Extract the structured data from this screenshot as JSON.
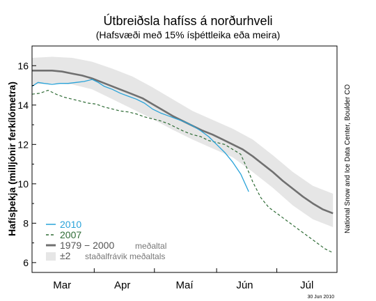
{
  "chart_data": {
    "type": "line",
    "title": "Útbreiðsla hafíss á norðurhveli",
    "subtitle": "(Hafsvæði með 15% ísþéttleika eða meira)",
    "ylabel": "Hafísþekja  (milljónir ferkílómetra)",
    "xlabel": "",
    "ylim": [
      5.5,
      17
    ],
    "yticks": [
      6,
      8,
      10,
      12,
      14,
      16
    ],
    "xlim": [
      0,
      152
    ],
    "month_labels": [
      {
        "label": "Mar",
        "day": 15
      },
      {
        "label": "Apr",
        "day": 45
      },
      {
        "label": "Maí",
        "day": 76
      },
      {
        "label": "Jún",
        "day": 106
      },
      {
        "label": "Júl",
        "day": 137
      }
    ],
    "month_starts": [
      0,
      31,
      61,
      92,
      122
    ],
    "series": [
      {
        "name": "2010",
        "style": "solid",
        "color": "#29a3d9",
        "x": [
          0,
          3,
          6,
          10,
          14,
          18,
          22,
          26,
          30,
          33,
          36,
          40,
          44,
          48,
          52,
          56,
          60,
          64,
          68,
          72,
          76,
          80,
          84,
          88,
          92,
          96,
          100,
          104,
          108
        ],
        "y": [
          14.95,
          15.15,
          15.1,
          15.05,
          15.1,
          15.1,
          15.15,
          15.2,
          15.3,
          15.15,
          14.95,
          14.8,
          14.6,
          14.45,
          14.3,
          14.1,
          13.8,
          13.6,
          13.45,
          13.3,
          13.15,
          12.95,
          12.7,
          12.4,
          12.0,
          11.6,
          11.1,
          10.5,
          9.6
        ]
      },
      {
        "name": "2007",
        "style": "dashed",
        "color": "#2e6b35",
        "x": [
          0,
          4,
          8,
          12,
          16,
          20,
          24,
          28,
          32,
          36,
          40,
          44,
          48,
          52,
          56,
          60,
          64,
          68,
          72,
          76,
          80,
          84,
          88,
          92,
          96,
          100,
          104,
          108,
          110,
          114,
          118,
          122,
          126,
          130,
          134,
          138,
          142,
          146,
          150
        ],
        "y": [
          14.55,
          14.6,
          14.75,
          14.55,
          14.4,
          14.3,
          14.2,
          14.1,
          14.05,
          13.9,
          13.8,
          13.7,
          13.65,
          13.55,
          13.4,
          13.3,
          13.2,
          13.05,
          12.85,
          12.65,
          12.5,
          12.4,
          12.2,
          12.1,
          12.0,
          11.75,
          11.5,
          10.6,
          10.1,
          9.3,
          8.8,
          8.5,
          8.2,
          7.9,
          7.6,
          7.3,
          7.0,
          6.7,
          6.5
        ]
      },
      {
        "name": "1979 − 2000",
        "style": "thick",
        "color": "#707070",
        "x": [
          0,
          5,
          10,
          15,
          20,
          25,
          30,
          35,
          40,
          45,
          50,
          55,
          60,
          65,
          70,
          75,
          80,
          85,
          90,
          95,
          100,
          105,
          110,
          115,
          120,
          125,
          130,
          135,
          140,
          145,
          150
        ],
        "y": [
          15.75,
          15.75,
          15.75,
          15.7,
          15.6,
          15.5,
          15.35,
          15.15,
          14.95,
          14.75,
          14.55,
          14.35,
          14.05,
          13.75,
          13.45,
          13.2,
          12.95,
          12.7,
          12.5,
          12.25,
          12.0,
          11.75,
          11.4,
          11.0,
          10.6,
          10.15,
          9.75,
          9.35,
          9.0,
          8.7,
          8.5
        ]
      }
    ],
    "band": {
      "name": "±2",
      "color": "#e6e6e6",
      "x": [
        0,
        10,
        20,
        30,
        40,
        50,
        60,
        70,
        80,
        90,
        100,
        110,
        120,
        130,
        140,
        150
      ],
      "upper": [
        16.4,
        16.45,
        16.4,
        16.2,
        15.85,
        15.45,
        14.9,
        14.3,
        13.7,
        13.25,
        12.8,
        12.25,
        11.45,
        10.6,
        9.9,
        9.5
      ],
      "lower": [
        15.05,
        15.1,
        15.05,
        14.8,
        14.3,
        13.8,
        13.3,
        12.75,
        12.25,
        11.8,
        11.35,
        10.6,
        9.8,
        8.9,
        8.2,
        7.8
      ]
    },
    "legend": {
      "placement": "bottom-left",
      "entries": [
        {
          "label": "2010",
          "note": ""
        },
        {
          "label": "2007",
          "note": ""
        },
        {
          "label": "1979 − 2000",
          "note": "meðaltal"
        },
        {
          "label": "±2",
          "note": "staðalfrávik meðaltals"
        }
      ]
    },
    "credit": "National Snow and Ice Data Center, Boulder CO",
    "date_stamp": "30 Jun 2010"
  }
}
